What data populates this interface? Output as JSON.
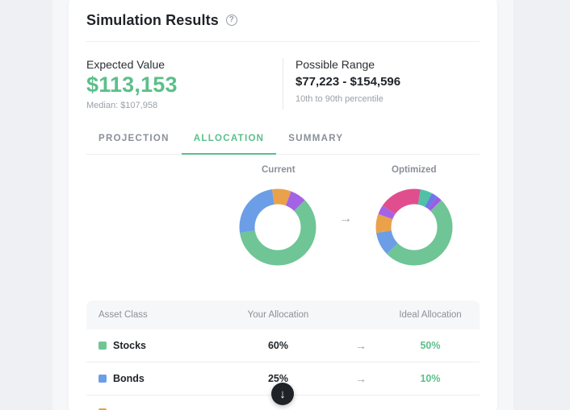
{
  "header": {
    "title": "Simulation Results",
    "help_icon": "?"
  },
  "stats": {
    "expected": {
      "label": "Expected Value",
      "value": "$113,153",
      "sub": "Median: $107,958"
    },
    "range": {
      "label": "Possible Range",
      "value": "$77,223 - $154,596",
      "sub": "10th to 90th percentile"
    }
  },
  "tabs": [
    {
      "label": "PROJECTION",
      "active": false
    },
    {
      "label": "ALLOCATION",
      "active": true
    },
    {
      "label": "SUMMARY",
      "active": false
    }
  ],
  "charts": {
    "current_label": "Current",
    "optimized_label": "Optimized",
    "arrow": "→",
    "current_segments": [
      {
        "color": "#6fc595",
        "fraction": 0.6
      },
      {
        "color": "#6b9ee6",
        "fraction": 0.25
      },
      {
        "color": "#e9a14a",
        "fraction": 0.08
      },
      {
        "color": "#a463e6",
        "fraction": 0.07
      }
    ],
    "optimized_segments": [
      {
        "color": "#6fc595",
        "fraction": 0.5
      },
      {
        "color": "#6b9ee6",
        "fraction": 0.1
      },
      {
        "color": "#e9a14a",
        "fraction": 0.08
      },
      {
        "color": "#a463e6",
        "fraction": 0.04
      },
      {
        "color": "#e04e8e",
        "fraction": 0.18
      },
      {
        "color": "#4fc1a6",
        "fraction": 0.05
      },
      {
        "color": "#6b78e6",
        "fraction": 0.025
      },
      {
        "color": "#9b5de5",
        "fraction": 0.025
      }
    ]
  },
  "table": {
    "headers": {
      "asset": "Asset Class",
      "yours": "Your Allocation",
      "ideal": "Ideal Allocation"
    },
    "arrow": "→",
    "rows": [
      {
        "name": "Stocks",
        "color": "#6fc595",
        "yours": "60%",
        "ideal": "50%"
      },
      {
        "name": "Bonds",
        "color": "#6b9ee6",
        "yours": "25%",
        "ideal": "10%"
      }
    ]
  },
  "scroll_button": {
    "icon": "arrow-down-icon",
    "glyph": "↓"
  }
}
